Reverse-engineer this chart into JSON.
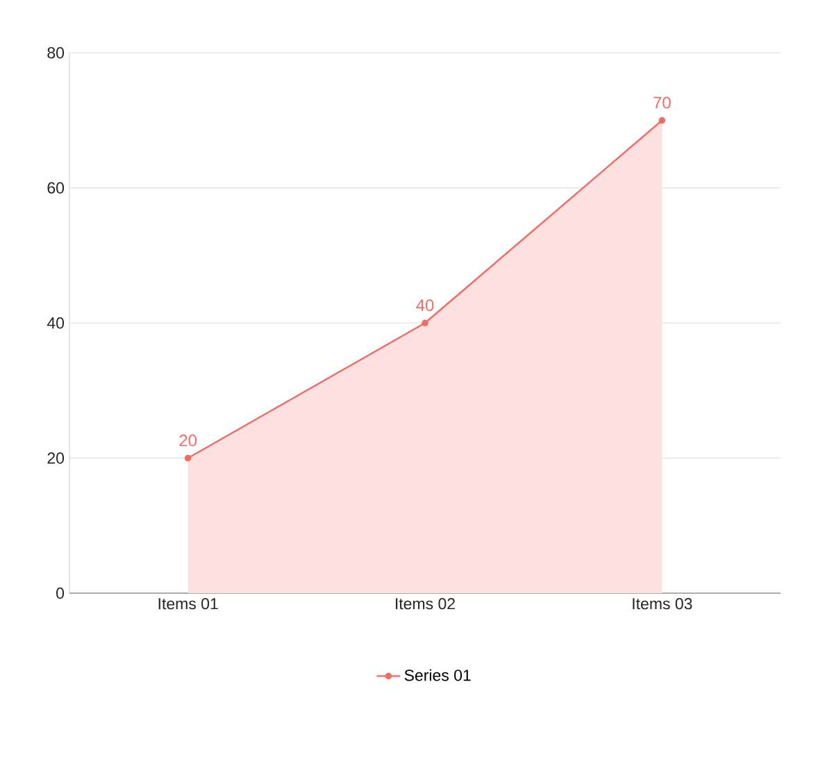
{
  "chart_data": {
    "type": "area",
    "categories": [
      "Items 01",
      "Items 02",
      "Items 03"
    ],
    "series": [
      {
        "name": "Series 01",
        "color": "#f26b64",
        "values": [
          20,
          40,
          70
        ]
      }
    ],
    "ylim": [
      0,
      80
    ],
    "yticks": [
      0,
      20,
      40,
      60,
      80
    ],
    "grid": "y",
    "legend": "bottom",
    "marker": "circle",
    "data_labels": true
  }
}
